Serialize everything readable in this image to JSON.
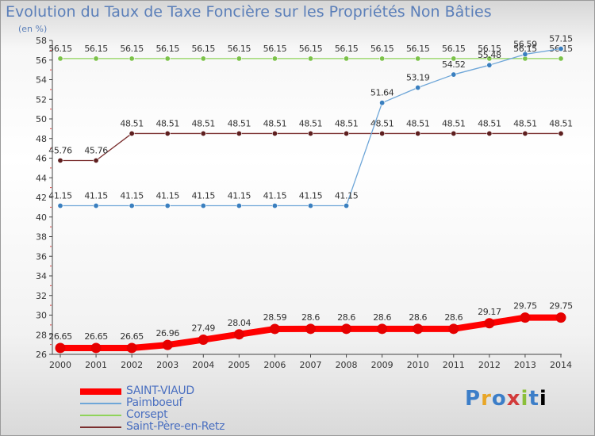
{
  "title": "Evolution du Taux de Taxe Foncière sur les Propriétés Non Bâties",
  "subtitle": "(en %)",
  "logo_text": "Proxiti",
  "chart_data": {
    "type": "line",
    "x": [
      2000,
      2001,
      2002,
      2003,
      2004,
      2005,
      2006,
      2007,
      2008,
      2009,
      2010,
      2011,
      2012,
      2013,
      2014
    ],
    "ylim": [
      26,
      58
    ],
    "yticks": [
      26,
      28,
      30,
      32,
      34,
      36,
      38,
      40,
      42,
      44,
      46,
      48,
      50,
      52,
      54,
      56,
      58
    ],
    "grid": false,
    "legend_position": "bottom-left",
    "series": [
      {
        "name": "SAINT-VIAUD",
        "color": "#ff0000",
        "point_color": "#e60000",
        "values": [
          26.65,
          26.65,
          26.65,
          26.96,
          27.49,
          28.04,
          28.59,
          28.6,
          28.6,
          28.6,
          28.6,
          28.6,
          29.17,
          29.75,
          29.75
        ],
        "labels": [
          "26.65",
          "26.65",
          "26.65",
          "26.96",
          "27.49",
          "28.04",
          "28.59",
          "28.6",
          "28.6",
          "28.6",
          "28.6",
          "28.6",
          "29.17",
          "29.75",
          "29.75"
        ]
      },
      {
        "name": "Paimboeuf",
        "color": "#6ea6d8",
        "point_color": "#3a7fbf",
        "values": [
          41.15,
          41.15,
          41.15,
          41.15,
          41.15,
          41.15,
          41.15,
          41.15,
          41.15,
          51.64,
          53.19,
          54.52,
          55.48,
          56.59,
          57.15
        ],
        "labels": [
          "41.15",
          "41.15",
          "41.15",
          "41.15",
          "41.15",
          "41.15",
          "41.15",
          "41.15",
          "41.15",
          "51.64",
          "53.19",
          "54.52",
          "55.48",
          "56.59",
          "57.15"
        ]
      },
      {
        "name": "Corsept",
        "color": "#8fd35a",
        "point_color": "#7cc24a",
        "values": [
          56.15,
          56.15,
          56.15,
          56.15,
          56.15,
          56.15,
          56.15,
          56.15,
          56.15,
          56.15,
          56.15,
          56.15,
          56.15,
          56.15,
          56.15
        ],
        "labels": [
          "56.15",
          "56.15",
          "56.15",
          "56.15",
          "56.15",
          "56.15",
          "56.15",
          "56.15",
          "56.15",
          "56.15",
          "56.15",
          "56.15",
          "56.15",
          "56.15",
          "56.15"
        ]
      },
      {
        "name": "Saint-Père-en-Retz",
        "color": "#7a2e2e",
        "point_color": "#5e1f1f",
        "values": [
          45.76,
          45.76,
          48.51,
          48.51,
          48.51,
          48.51,
          48.51,
          48.51,
          48.51,
          48.51,
          48.51,
          48.51,
          48.51,
          48.51,
          48.51
        ],
        "labels": [
          "45.76",
          "45.76",
          "48.51",
          "48.51",
          "48.51",
          "48.51",
          "48.51",
          "48.51",
          "48.51",
          "48.51",
          "48.51",
          "48.51",
          "48.51",
          "48.51",
          "48.51"
        ]
      }
    ]
  }
}
